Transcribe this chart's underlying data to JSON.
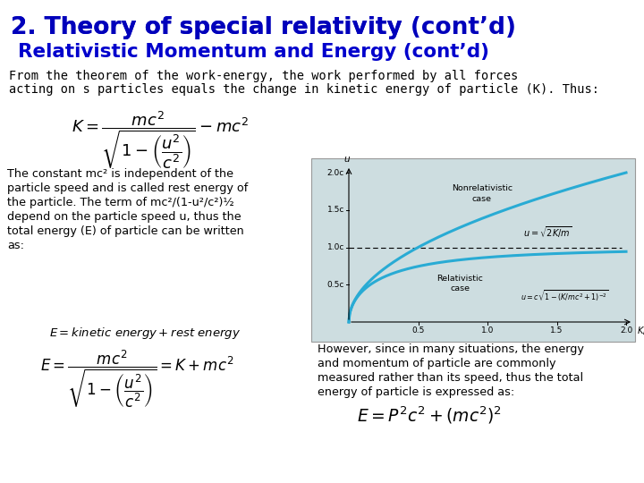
{
  "title1_bold": "2. Theory of special relativity",
  "title1_normal": " (cont’d)",
  "title2": "Relativistic Momentum and Energy (cont’d)",
  "body_text1_line1": "From the theorem of the work-energy, the work performed by all forces",
  "body_text1_line2": "acting on s particles equals the change in kinetic energy of particle (K). Thus:",
  "body_text2": "The constant mc² is independent of the\nparticle speed and is called rest energy of\nthe particle. The term of mc²/(1-u²/c²)½\ndepend on the particle speed u, thus the\ntotal energy (E) of particle can be written\nas:",
  "body_text3_line1": "However, since in many situations, the energy",
  "body_text3_line2": "and momentum of particle are commonly",
  "body_text3_line3": "measured rather than its speed, thus the total",
  "body_text3_line4": "energy of particle is expressed as:",
  "bg_color": "#ffffff",
  "title1_color": "#0000BB",
  "title2_color": "#0000CC",
  "body_color": "#000000",
  "graph_bg": "#cddde0",
  "curve_color": "#29ABD4"
}
